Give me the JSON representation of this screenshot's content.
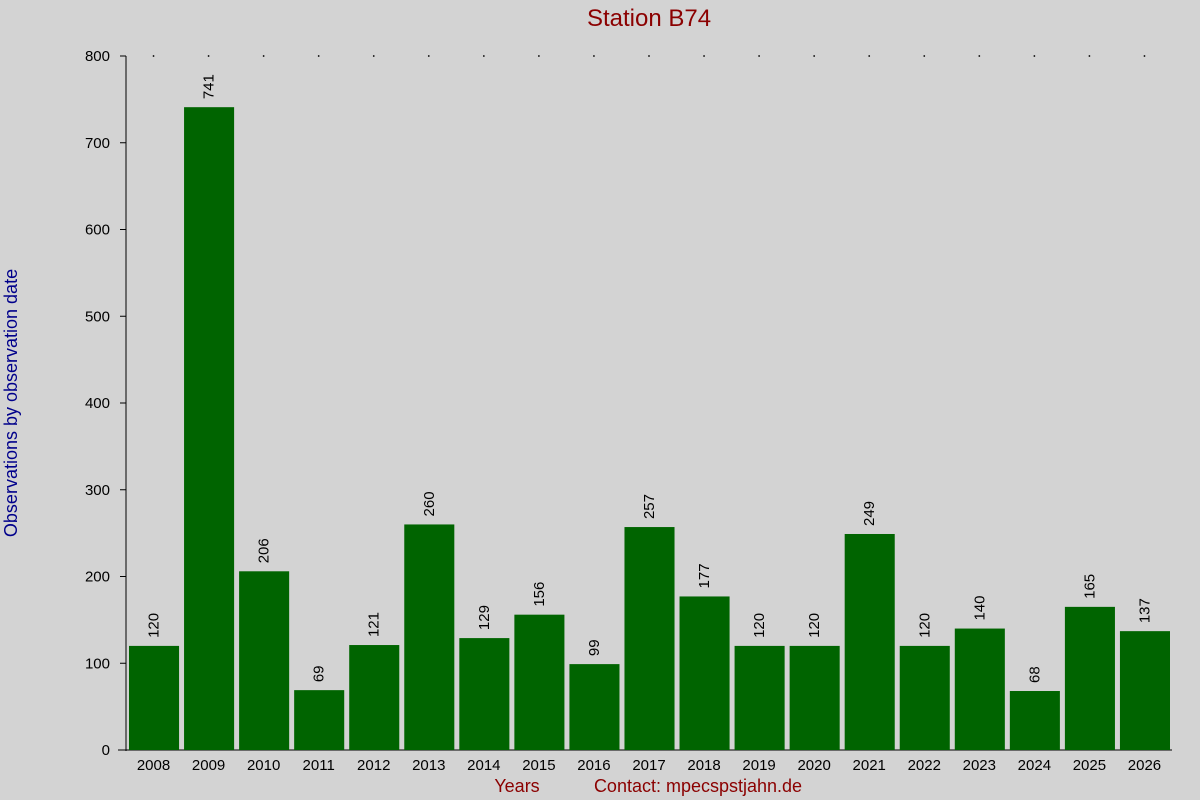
{
  "chart_data": {
    "type": "bar",
    "title": "Station B74",
    "ylabel": "Observations by observation date",
    "xlabel": "Years",
    "contact": "Contact: mpecspstjahn.de",
    "categories": [
      "2008",
      "2009",
      "2010",
      "2011",
      "2012",
      "2013",
      "2014",
      "2015",
      "2016",
      "2017",
      "2018",
      "2019",
      "2020",
      "2021",
      "2022",
      "2023",
      "2024",
      "2025",
      "2026"
    ],
    "values": [
      120,
      741,
      206,
      69,
      121,
      260,
      129,
      156,
      99,
      257,
      177,
      120,
      120,
      249,
      120,
      140,
      68,
      165,
      137
    ],
    "ylim": [
      0,
      800
    ],
    "yticks": [
      0,
      100,
      200,
      300,
      400,
      500,
      600,
      700,
      800
    ],
    "grid": false,
    "colors": {
      "bar": "#006400",
      "title": "#8b0000",
      "ylabel": "#00008b",
      "background": "#d3d3d3"
    }
  }
}
